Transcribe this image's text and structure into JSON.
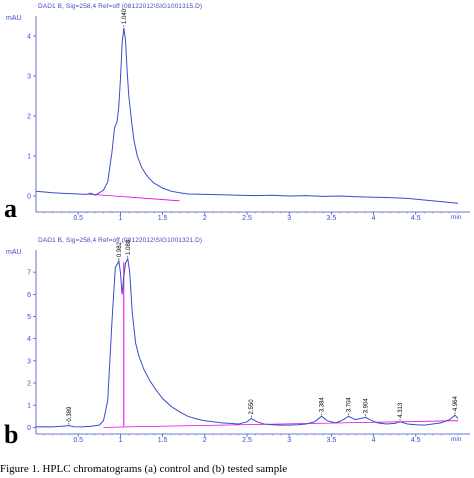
{
  "chart_data": [
    {
      "panel_label": "a",
      "type": "line",
      "header": "DAD1 B, Sig=258,4 Ref=off (08122012\\SIG1001315.D)",
      "ylabel": "mAU",
      "xlabel": "min",
      "xlim": [
        0,
        5.0
      ],
      "ylim": [
        -0.4,
        4.5
      ],
      "x_ticks": [
        "0.5",
        "1",
        "1.5",
        "2",
        "2.5",
        "3",
        "3.5",
        "4",
        "4.5"
      ],
      "y_ticks": [
        "0",
        "1",
        "2",
        "3",
        "4"
      ],
      "peak_labels": [
        {
          "x": 1.04,
          "text": "1.040"
        }
      ],
      "series": [
        {
          "color": "#3a4cc9",
          "x": [
            0.0,
            0.1,
            0.2,
            0.3,
            0.4,
            0.5,
            0.6,
            0.65,
            0.7,
            0.75,
            0.8,
            0.85,
            0.9,
            0.93,
            0.96,
            0.98,
            1.0,
            1.02,
            1.04,
            1.06,
            1.08,
            1.1,
            1.13,
            1.16,
            1.2,
            1.25,
            1.3,
            1.35,
            1.4,
            1.5,
            1.6,
            1.7,
            1.8,
            2.0,
            2.2,
            2.4,
            2.6,
            2.8,
            3.0,
            3.2,
            3.4,
            3.6,
            3.8,
            4.0,
            4.2,
            4.4,
            4.6,
            4.8,
            5.0
          ],
          "y": [
            0.12,
            0.1,
            0.08,
            0.07,
            0.06,
            0.05,
            0.04,
            0.07,
            0.02,
            0.08,
            0.15,
            0.35,
            1.1,
            1.7,
            1.85,
            2.2,
            2.9,
            3.8,
            4.2,
            3.9,
            3.1,
            2.5,
            1.9,
            1.4,
            1.0,
            0.72,
            0.55,
            0.42,
            0.32,
            0.2,
            0.12,
            0.08,
            0.05,
            0.04,
            0.03,
            0.02,
            0.01,
            0.02,
            0.0,
            0.01,
            -0.01,
            0.0,
            -0.02,
            -0.03,
            -0.04,
            -0.06,
            -0.1,
            -0.14,
            -0.18
          ]
        }
      ],
      "baseline": {
        "color": "#e400e4",
        "x": [
          0.6,
          1.7
        ],
        "y": [
          0.05,
          -0.12
        ]
      }
    },
    {
      "panel_label": "b",
      "type": "line",
      "header": "DAD1 B, Sig=258,4 Ref=off (08122012\\SIG1001321.D)",
      "ylabel": "mAU",
      "xlabel": "min",
      "xlim": [
        0,
        5.0
      ],
      "ylim": [
        -0.3,
        8.0
      ],
      "x_ticks": [
        "0.5",
        "1",
        "1.5",
        "2",
        "2.5",
        "3",
        "3.5",
        "4",
        "4.5"
      ],
      "y_ticks": [
        "0",
        "1",
        "2",
        "3",
        "4",
        "5",
        "6",
        "7"
      ],
      "peak_labels": [
        {
          "x": 0.389,
          "text": "0.389"
        },
        {
          "x": 0.982,
          "text": "0.982"
        },
        {
          "x": 1.088,
          "text": "1.088"
        },
        {
          "x": 2.55,
          "text": "2.550"
        },
        {
          "x": 3.384,
          "text": "3.384"
        },
        {
          "x": 3.704,
          "text": "3.704"
        },
        {
          "x": 3.904,
          "text": "3.904"
        },
        {
          "x": 4.313,
          "text": "4.313"
        },
        {
          "x": 4.964,
          "text": "4.964"
        }
      ],
      "series": [
        {
          "color": "#3a4cc9",
          "x": [
            0.0,
            0.1,
            0.2,
            0.3,
            0.389,
            0.45,
            0.55,
            0.65,
            0.75,
            0.8,
            0.85,
            0.9,
            0.94,
            0.982,
            1.0,
            1.02,
            1.04,
            1.06,
            1.088,
            1.11,
            1.14,
            1.18,
            1.22,
            1.28,
            1.35,
            1.42,
            1.5,
            1.6,
            1.7,
            1.8,
            1.9,
            2.0,
            2.1,
            2.2,
            2.3,
            2.4,
            2.5,
            2.55,
            2.62,
            2.7,
            2.8,
            2.9,
            3.0,
            3.1,
            3.2,
            3.3,
            3.384,
            3.45,
            3.55,
            3.62,
            3.704,
            3.78,
            3.85,
            3.904,
            3.98,
            4.05,
            4.15,
            4.25,
            4.313,
            4.4,
            4.5,
            4.6,
            4.7,
            4.8,
            4.9,
            4.964,
            5.0
          ],
          "y": [
            0.02,
            0.03,
            0.02,
            0.05,
            0.08,
            0.03,
            0.02,
            0.05,
            0.1,
            0.3,
            1.2,
            4.8,
            7.2,
            7.5,
            7.0,
            6.0,
            6.8,
            7.4,
            7.6,
            7.0,
            5.2,
            3.8,
            3.2,
            2.6,
            2.1,
            1.7,
            1.3,
            0.95,
            0.7,
            0.5,
            0.38,
            0.3,
            0.25,
            0.2,
            0.18,
            0.15,
            0.25,
            0.4,
            0.25,
            0.15,
            0.12,
            0.1,
            0.1,
            0.12,
            0.15,
            0.25,
            0.5,
            0.3,
            0.2,
            0.3,
            0.5,
            0.35,
            0.4,
            0.45,
            0.3,
            0.2,
            0.15,
            0.18,
            0.25,
            0.15,
            0.12,
            0.1,
            0.15,
            0.2,
            0.35,
            0.55,
            0.4
          ]
        }
      ],
      "baseline": {
        "color": "#e400e4",
        "x": [
          0.8,
          5.0
        ],
        "y": [
          0.0,
          0.3
        ]
      },
      "marker_line": {
        "color": "#e400e4",
        "x": 1.04
      }
    }
  ],
  "caption": "Figure 1. HPLC chromatograms (a) control and (b) tested sample"
}
